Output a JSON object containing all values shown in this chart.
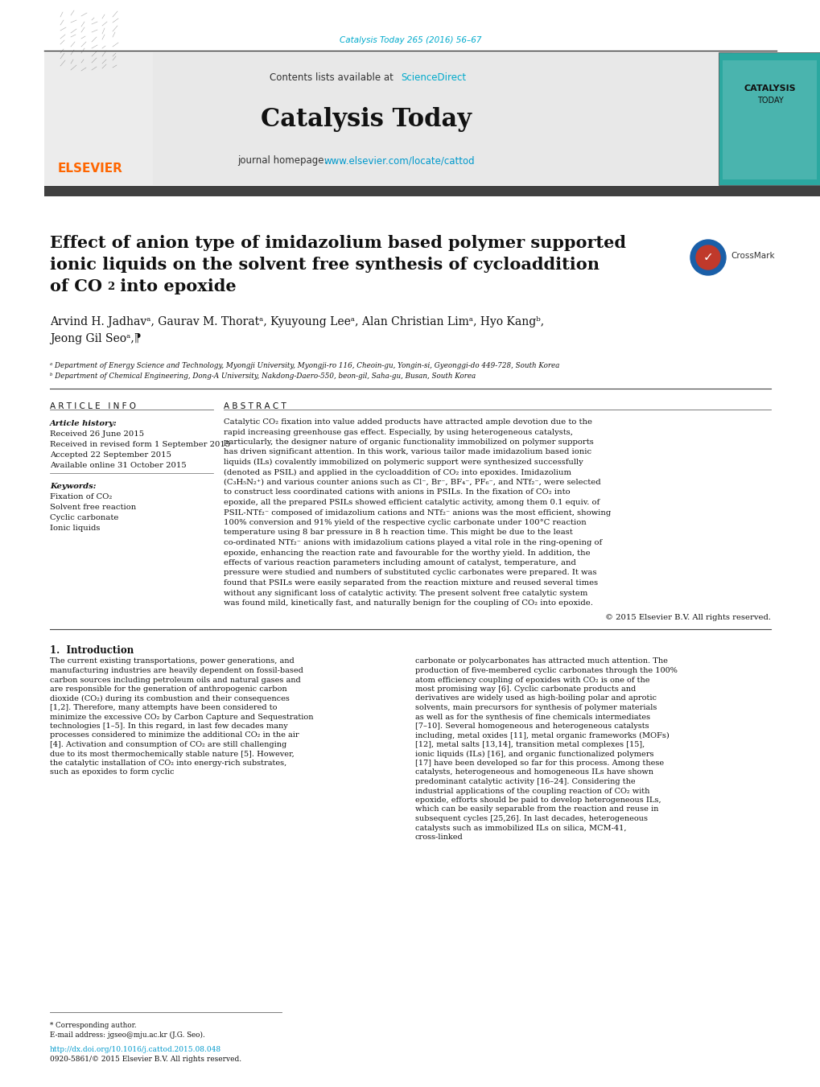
{
  "page_width": 10.2,
  "page_height": 13.51,
  "bg_color": "#ffffff",
  "journal_cite_color": "#00aacc",
  "journal_cite": "Catalysis Today 265 (2016) 56–67",
  "header_bg": "#e8e8e8",
  "journal_name": "Catalysis Today",
  "contents_text": "Contents lists available at ",
  "sciencedirect": "ScienceDirect",
  "journal_homepage_text": "journal homepage: ",
  "journal_url": "www.elsevier.com/locate/cattod",
  "journal_url_color": "#0099cc",
  "dark_bar_color": "#404040",
  "title_line1": "Effect of anion type of imidazolium based polymer supported",
  "title_line2": "ionic liquids on the solvent free synthesis of cycloaddition",
  "title_line3a": "of CO",
  "title_line3b": "2",
  "title_line3c": " into epoxide",
  "authors": "Arvind H. Jadhavᵃ, Gaurav M. Thoratᵃ, Kyuyoung Leeᵃ, Alan Christian Limᵃ, Hyo Kangᵇ,",
  "authors2": "Jeong Gil Seoᵃ,⁋",
  "aff_a": "ᵃ Department of Energy Science and Technology, Myongji University, Myongji-ro 116, Cheoin-gu, Yongin-si, Gyeonggi-do 449-728, South Korea",
  "aff_b": "ᵇ Department of Chemical Engineering, Dong-A University, Nakdong-Daero-550, beon-gil, Saha-gu, Busan, South Korea",
  "article_info_title": "A R T I C L E   I N F O",
  "abstract_title": "A B S T R A C T",
  "article_history_label": "Article history:",
  "received": "Received 26 June 2015",
  "revised": "Received in revised form 1 September 2015",
  "accepted": "Accepted 22 September 2015",
  "available": "Available online 31 October 2015",
  "keywords_label": "Keywords:",
  "keywords": [
    "Fixation of CO₂",
    "Solvent free reaction",
    "Cyclic carbonate",
    "Ionic liquids"
  ],
  "abstract_text": "Catalytic CO₂ fixation into value added products have attracted ample devotion due to the rapid increasing greenhouse gas effect. Especially, by using heterogeneous catalysts, particularly, the designer nature of organic functionality immobilized on polymer supports has driven significant attention. In this work, various tailor made imidazolium based ionic liquids (ILs) covalently immobilized on polymeric support were synthesized successfully (denoted as PSIL) and applied in the cycloaddition of CO₂ into epoxides. Imidazolium (C₃H₅N₂⁺) and various counter anions such as Cl⁻, Br⁻, BF₄⁻, PF₆⁻, and NTf₂⁻, were selected to construct less coordinated cations with anions in PSILs. In the fixation of CO₂ into epoxide, all the prepared PSILs showed efficient catalytic activity, among them 0.1 equiv. of PSIL-NTf₂⁻ composed of imidazolium cations and NTf₂⁻ anions was the most efficient, showing 100% conversion and 91% yield of the respective cyclic carbonate under 100°C reaction temperature using 8 bar pressure in 8 h reaction time. This might be due to the least co-ordinated NTf₂⁻ anions with imidazolium cations played a vital role in the ring-opening of epoxide, enhancing the reaction rate and favourable for the worthy yield. In addition, the effects of various reaction parameters including amount of catalyst, temperature, and pressure were studied and numbers of substituted cyclic carbonates were prepared. It was found that PSILs were easily separated from the reaction mixture and reused several times without any significant loss of catalytic activity. The present solvent free catalytic system was found mild, kinetically fast, and naturally benign for the coupling of CO₂ into epoxide.",
  "copyright": "© 2015 Elsevier B.V. All rights reserved.",
  "intro_heading": "1.  Introduction",
  "intro_col1": "The current existing transportations, power generations, and manufacturing industries are heavily dependent on fossil-based carbon sources including petroleum oils and natural gases and are responsible for the generation of anthropogenic carbon dioxide (CO₂) during its combustion and their consequences [1,2]. Therefore, many attempts have been considered to minimize the excessive CO₂ by Carbon Capture and Sequestration technologies [1–5]. In this regard, in last few decades many processes considered to minimize the additional CO₂ in the air [4]. Activation and consumption of CO₂ are still challenging due to its most thermochemically stable nature [5]. However, the catalytic installation of CO₂ into energy-rich substrates, such as epoxides to form cyclic",
  "intro_col2": "carbonate or polycarbonates has attracted much attention. The production of five-membered cyclic carbonates through the 100% atom efficiency coupling of epoxides with CO₂ is one of the most promising way [6]. Cyclic carbonate products and derivatives are widely used as high-boiling polar and aprotic solvents, main precursors for synthesis of polymer materials as well as for the synthesis of fine chemicals intermediates [7–10]. Several homogeneous and heterogeneous catalysts including, metal oxides [11], metal organic frameworks (MOFs) [12], metal salts [13,14], transition metal complexes [15], ionic liquids (ILs) [16], and organic functionalized polymers [17] have been developed so far for this process. Among these catalysts, heterogeneous and homogeneous ILs have shown predominant catalytic activity [16–24]. Considering the industrial applications of the coupling reaction of CO₂ with epoxide, efforts should be paid to develop heterogeneous ILs, which can be easily separable from the reaction and reuse in subsequent cycles [25,26]. In last decades, heterogeneous catalysts such as immobilized ILs on silica, MCM-41, cross-linked",
  "footer_doi": "http://dx.doi.org/10.1016/j.cattod.2015.08.048",
  "footer_issn": "0920-5861/© 2015 Elsevier B.V. All rights reserved.",
  "corresponding_note": "* Corresponding author.",
  "email_note": "E-mail address: jgseo@mju.ac.kr (J.G. Seo).",
  "sciencedirect_color": "#00aacc",
  "elsevier_color": "#ff6600",
  "teal_color": "#2ba8a0",
  "crossmark_blue": "#1a5fa8",
  "crossmark_red": "#c0392b"
}
